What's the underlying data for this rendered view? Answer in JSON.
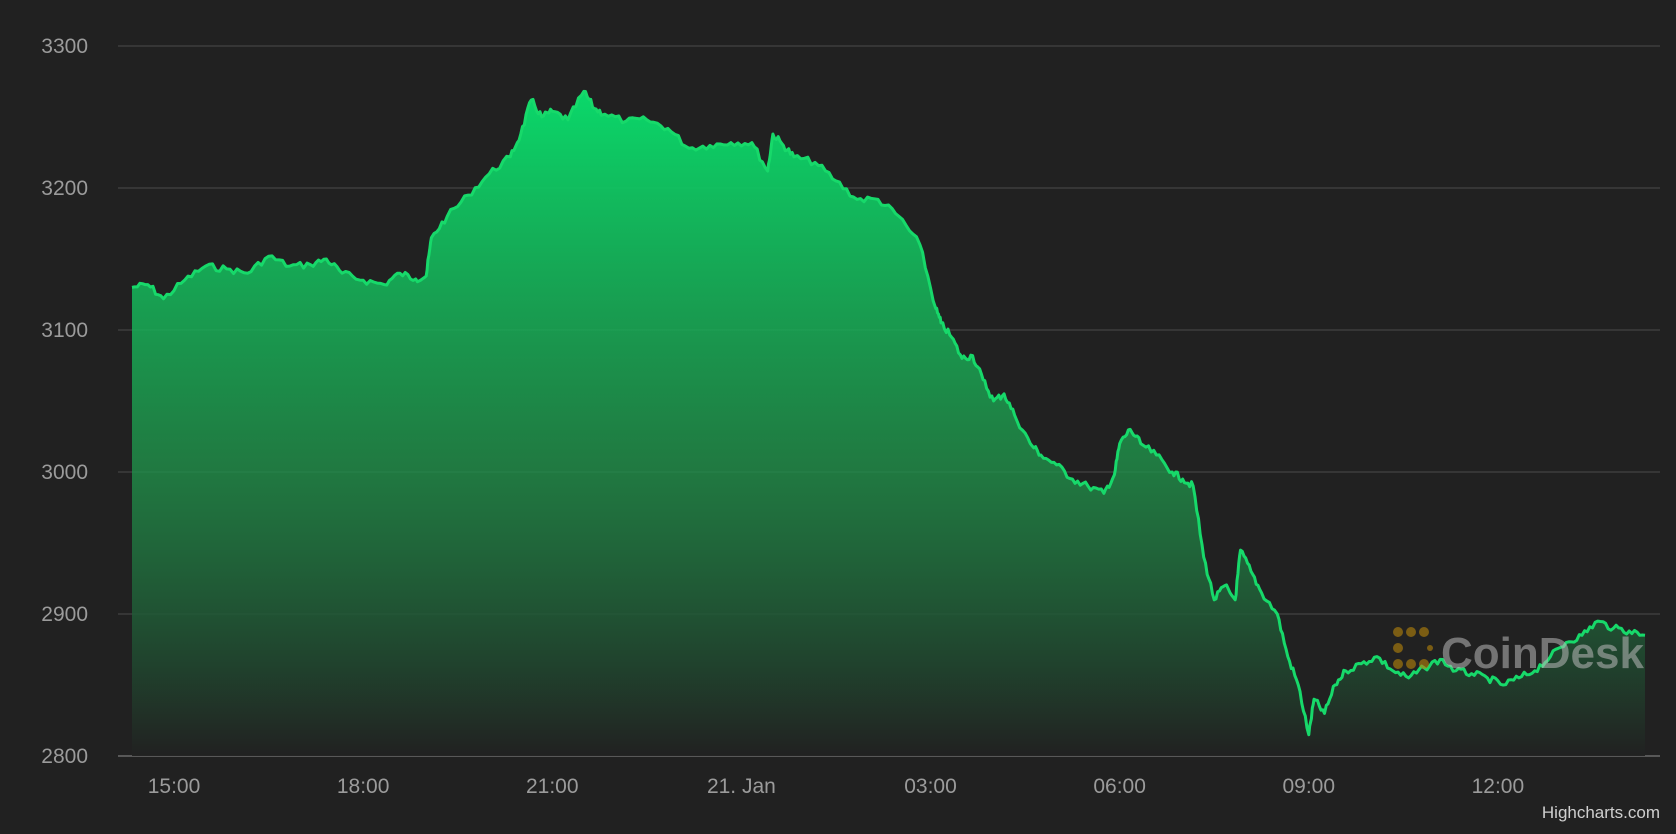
{
  "colors": {
    "background": "#212121",
    "line": "#17d96a",
    "grid": "#4a4a4a",
    "axis_text": "#9b9b9b",
    "watermark_logo": "#b8860b"
  },
  "watermark": {
    "text": "CoinDesk",
    "icon": "coindesk-logo-icon"
  },
  "credit": "Highcharts.com",
  "chart_data": {
    "type": "area",
    "title": "",
    "xlabel": "",
    "ylabel": "",
    "ylim": [
      2800,
      3300
    ],
    "xlim": [
      "20 Jan 14:20",
      "21 Jan 14:20"
    ],
    "grid": true,
    "y_ticks": [
      "2800",
      "2900",
      "3000",
      "3100",
      "3200",
      "3300"
    ],
    "x_ticks": [
      {
        "label": "15:00",
        "time": "20 Jan 15:00"
      },
      {
        "label": "18:00",
        "time": "20 Jan 18:00"
      },
      {
        "label": "21:00",
        "time": "20 Jan 21:00"
      },
      {
        "label": "21. Jan",
        "time": "21 Jan 00:00"
      },
      {
        "label": "03:00",
        "time": "21 Jan 03:00"
      },
      {
        "label": "06:00",
        "time": "21 Jan 06:00"
      },
      {
        "label": "09:00",
        "time": "21 Jan 09:00"
      },
      {
        "label": "12:00",
        "time": "21 Jan 12:00"
      }
    ],
    "series": [
      {
        "x": [
          "20 Jan 14:20",
          "20 Jan 14:35",
          "20 Jan 14:50",
          "20 Jan 15:10",
          "20 Jan 15:30",
          "20 Jan 15:50",
          "20 Jan 16:10",
          "20 Jan 16:30",
          "20 Jan 16:50",
          "20 Jan 17:10",
          "20 Jan 17:25",
          "20 Jan 17:40",
          "20 Jan 18:00",
          "20 Jan 18:20",
          "20 Jan 18:35",
          "20 Jan 18:50",
          "20 Jan 19:00",
          "20 Jan 19:05",
          "20 Jan 19:20",
          "20 Jan 19:40",
          "20 Jan 20:00",
          "20 Jan 20:20",
          "20 Jan 20:30",
          "20 Jan 20:40",
          "20 Jan 20:50",
          "20 Jan 21:00",
          "20 Jan 21:15",
          "20 Jan 21:30",
          "20 Jan 21:40",
          "20 Jan 21:50",
          "20 Jan 22:10",
          "20 Jan 22:30",
          "20 Jan 22:50",
          "20 Jan 23:10",
          "20 Jan 23:30",
          "20 Jan 23:50",
          "21 Jan 00:10",
          "21 Jan 00:25",
          "21 Jan 00:30",
          "21 Jan 00:40",
          "21 Jan 00:50",
          "21 Jan 01:10",
          "21 Jan 01:30",
          "21 Jan 01:50",
          "21 Jan 02:10",
          "21 Jan 02:30",
          "21 Jan 02:50",
          "21 Jan 03:05",
          "21 Jan 03:10",
          "21 Jan 03:20",
          "21 Jan 03:30",
          "21 Jan 03:40",
          "21 Jan 03:50",
          "21 Jan 04:00",
          "21 Jan 04:10",
          "21 Jan 04:20",
          "21 Jan 04:35",
          "21 Jan 04:45",
          "21 Jan 05:00",
          "21 Jan 05:15",
          "21 Jan 05:30",
          "21 Jan 05:45",
          "21 Jan 05:55",
          "21 Jan 06:00",
          "21 Jan 06:10",
          "21 Jan 06:20",
          "21 Jan 06:35",
          "21 Jan 06:50",
          "21 Jan 07:00",
          "21 Jan 07:10",
          "21 Jan 07:20",
          "21 Jan 07:30",
          "21 Jan 07:40",
          "21 Jan 07:50",
          "21 Jan 07:55",
          "21 Jan 08:05",
          "21 Jan 08:15",
          "21 Jan 08:30",
          "21 Jan 08:40",
          "21 Jan 08:50",
          "21 Jan 09:00",
          "21 Jan 09:05",
          "21 Jan 09:15",
          "21 Jan 09:25",
          "21 Jan 09:35",
          "21 Jan 09:50",
          "21 Jan 10:05",
          "21 Jan 10:20",
          "21 Jan 10:35",
          "21 Jan 10:50",
          "21 Jan 11:05",
          "21 Jan 11:20",
          "21 Jan 11:35",
          "21 Jan 11:50",
          "21 Jan 12:05",
          "21 Jan 12:20",
          "21 Jan 12:35",
          "21 Jan 12:50",
          "21 Jan 13:05",
          "21 Jan 13:20",
          "21 Jan 13:35",
          "21 Jan 13:50",
          "21 Jan 14:05",
          "21 Jan 14:20"
        ],
        "values": [
          3130,
          3132,
          3122,
          3135,
          3145,
          3143,
          3140,
          3152,
          3145,
          3146,
          3150,
          3140,
          3135,
          3132,
          3140,
          3136,
          3138,
          3165,
          3180,
          3195,
          3210,
          3222,
          3238,
          3262,
          3250,
          3254,
          3248,
          3268,
          3256,
          3252,
          3247,
          3248,
          3242,
          3228,
          3230,
          3232,
          3232,
          3212,
          3238,
          3230,
          3222,
          3218,
          3205,
          3192,
          3192,
          3180,
          3160,
          3115,
          3105,
          3095,
          3080,
          3082,
          3065,
          3050,
          3055,
          3040,
          3020,
          3012,
          3005,
          2995,
          2990,
          2985,
          2998,
          3020,
          3030,
          3020,
          3012,
          3000,
          2995,
          2990,
          2940,
          2910,
          2920,
          2910,
          2945,
          2930,
          2915,
          2900,
          2870,
          2850,
          2815,
          2840,
          2830,
          2850,
          2860,
          2865,
          2870,
          2860,
          2855,
          2862,
          2868,
          2860,
          2858,
          2855,
          2850,
          2855,
          2860,
          2870,
          2880,
          2885,
          2895,
          2890,
          2888,
          2885
        ]
      }
    ]
  }
}
